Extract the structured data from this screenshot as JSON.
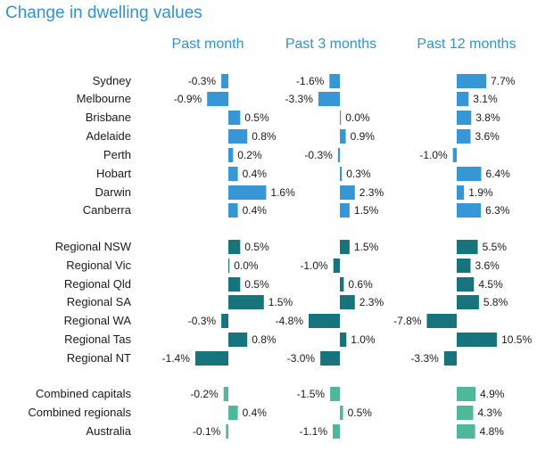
{
  "chart_data": {
    "type": "bar",
    "title": "Change in dwelling values",
    "units": "%",
    "categories": [
      "Sydney",
      "Melbourne",
      "Brisbane",
      "Adelaide",
      "Perth",
      "Hobart",
      "Darwin",
      "Canberra",
      "Regional NSW",
      "Regional Vic",
      "Regional Qld",
      "Regional SA",
      "Regional WA",
      "Regional Tas",
      "Regional NT",
      "Combined capitals",
      "Combined regionals",
      "Australia"
    ],
    "groups": [
      {
        "name": "capitals",
        "categories": [
          "Sydney",
          "Melbourne",
          "Brisbane",
          "Adelaide",
          "Perth",
          "Hobart",
          "Darwin",
          "Canberra"
        ],
        "color": "#3796d6"
      },
      {
        "name": "regionals",
        "categories": [
          "Regional NSW",
          "Regional Vic",
          "Regional Qld",
          "Regional SA",
          "Regional WA",
          "Regional Tas",
          "Regional NT"
        ],
        "color": "#17747d"
      },
      {
        "name": "combined",
        "categories": [
          "Combined capitals",
          "Combined regionals",
          "Australia"
        ],
        "color": "#4fb89a"
      }
    ],
    "series": [
      {
        "name": "Past month",
        "values": [
          -0.3,
          -0.9,
          0.5,
          0.8,
          0.2,
          0.4,
          1.6,
          0.4,
          0.5,
          0.0,
          0.5,
          1.5,
          -0.3,
          0.8,
          -1.4,
          -0.2,
          0.4,
          -0.1
        ],
        "labels": [
          "-0.3%",
          "-0.9%",
          "0.5%",
          "0.8%",
          "0.2%",
          "0.4%",
          "1.6%",
          "0.4%",
          "0.5%",
          "0.0%",
          "0.5%",
          "1.5%",
          "-0.3%",
          "0.8%",
          "-1.4%",
          "-0.2%",
          "0.4%",
          "-0.1%"
        ]
      },
      {
        "name": "Past 3 months",
        "values": [
          -1.6,
          -3.3,
          0.0,
          0.9,
          -0.3,
          0.3,
          2.3,
          1.5,
          1.5,
          -1.0,
          0.6,
          2.3,
          -4.8,
          1.0,
          -3.0,
          -1.5,
          0.5,
          -1.1
        ],
        "labels": [
          "-1.6%",
          "-3.3%",
          "0.0%",
          "0.9%",
          "-0.3%",
          "0.3%",
          "2.3%",
          "1.5%",
          "1.5%",
          "-1.0%",
          "0.6%",
          "2.3%",
          "-4.8%",
          "1.0%",
          "-3.0%",
          "-1.5%",
          "0.5%",
          "-1.1%"
        ]
      },
      {
        "name": "Past 12 months",
        "values": [
          7.7,
          3.1,
          3.8,
          3.6,
          -1.0,
          6.4,
          1.9,
          6.3,
          5.5,
          3.6,
          4.5,
          5.8,
          -7.8,
          10.5,
          -3.3,
          4.9,
          4.3,
          4.8
        ],
        "labels": [
          "7.7%",
          "3.1%",
          "3.8%",
          "3.6%",
          "-1.0%",
          "6.4%",
          "1.9%",
          "6.3%",
          "5.5%",
          "3.6%",
          "4.5%",
          "5.8%",
          "-7.8%",
          "10.5%",
          "-3.3%",
          "4.9%",
          "4.3%",
          "4.8%"
        ]
      }
    ]
  }
}
